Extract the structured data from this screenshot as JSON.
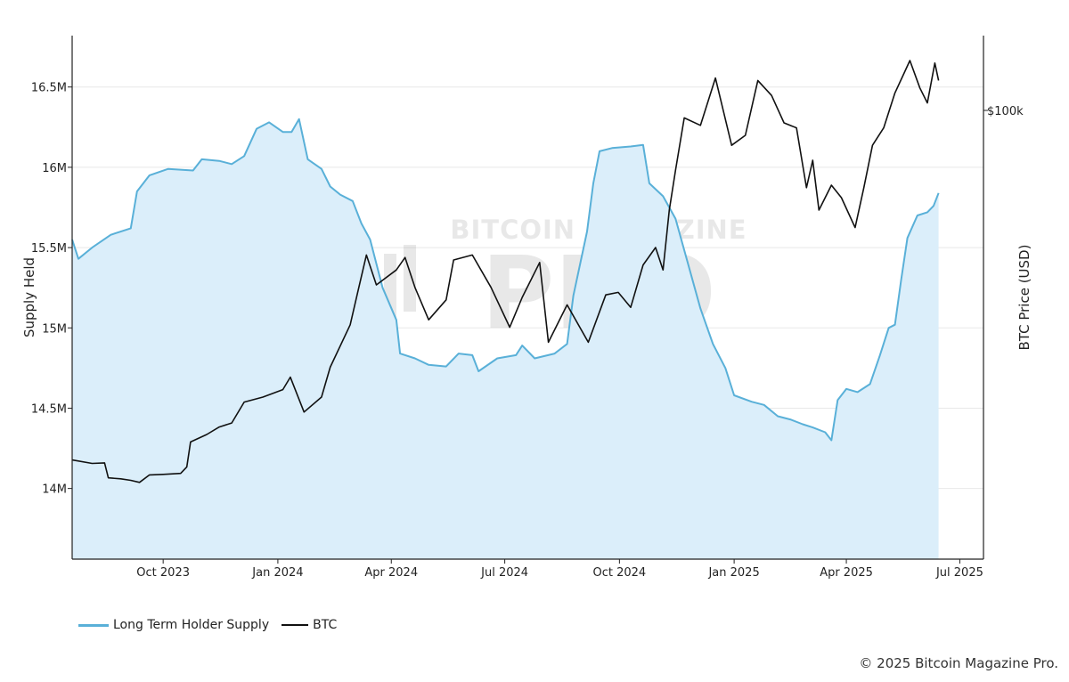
{
  "footer": {
    "copyright": "© 2025 Bitcoin Magazine Pro."
  },
  "watermark": {
    "text": "BITCOIN MAGAZINE",
    "sub": "PRO"
  },
  "colors": {
    "lth_line": "#59b0d8",
    "lth_fill": "#dbeefa",
    "btc_line": "#111111",
    "grid": "#e8e8e8",
    "axis": "#222222"
  },
  "chart_data": {
    "type": "area",
    "title": "",
    "xlabel": "",
    "ylabel": "Supply Held",
    "y2label": "BTC Price (USD)",
    "grid": true,
    "legend_position": "bottom-left",
    "x_tick_labels": [
      "Oct 2023",
      "Jan 2024",
      "Apr 2024",
      "Jul 2024",
      "Oct 2024",
      "Jan 2025",
      "Apr 2025",
      "Jul 2025"
    ],
    "x_ticks": [
      "2023-10-01",
      "2024-01-01",
      "2024-04-01",
      "2024-07-01",
      "2024-10-01",
      "2025-01-01",
      "2025-04-01",
      "2025-07-01"
    ],
    "xlim": [
      "2023-07-20",
      "2025-07-20"
    ],
    "y_tick_labels": [
      "14M",
      "14.5M",
      "15M",
      "15.5M",
      "16M",
      "16.5M"
    ],
    "y_ticks": [
      14000000,
      14500000,
      15000000,
      15500000,
      16000000,
      16500000
    ],
    "ylim": [
      13560000,
      16820000
    ],
    "y2_tick_labels": [
      "$100k"
    ],
    "y2_ticks": [
      100000
    ],
    "y2lim": [
      10000,
      115000
    ],
    "series": [
      {
        "name": "Long Term Holder Supply",
        "axis": "left",
        "points": [
          [
            "2023-07-20",
            15550000
          ],
          [
            "2023-07-25",
            15430000
          ],
          [
            "2023-08-05",
            15500000
          ],
          [
            "2023-08-20",
            15580000
          ],
          [
            "2023-09-05",
            15620000
          ],
          [
            "2023-09-10",
            15850000
          ],
          [
            "2023-09-20",
            15950000
          ],
          [
            "2023-10-05",
            15990000
          ],
          [
            "2023-10-25",
            15980000
          ],
          [
            "2023-11-01",
            16050000
          ],
          [
            "2023-11-15",
            16040000
          ],
          [
            "2023-11-25",
            16020000
          ],
          [
            "2023-12-05",
            16070000
          ],
          [
            "2023-12-15",
            16240000
          ],
          [
            "2023-12-25",
            16280000
          ],
          [
            "2024-01-05",
            16220000
          ],
          [
            "2024-01-12",
            16220000
          ],
          [
            "2024-01-18",
            16300000
          ],
          [
            "2024-01-25",
            16050000
          ],
          [
            "2024-02-05",
            15990000
          ],
          [
            "2024-02-12",
            15880000
          ],
          [
            "2024-02-20",
            15830000
          ],
          [
            "2024-03-01",
            15790000
          ],
          [
            "2024-03-08",
            15650000
          ],
          [
            "2024-03-15",
            15550000
          ],
          [
            "2024-03-25",
            15250000
          ],
          [
            "2024-04-05",
            15050000
          ],
          [
            "2024-04-08",
            14840000
          ],
          [
            "2024-04-20",
            14810000
          ],
          [
            "2024-05-01",
            14770000
          ],
          [
            "2024-05-15",
            14760000
          ],
          [
            "2024-05-25",
            14840000
          ],
          [
            "2024-06-05",
            14830000
          ],
          [
            "2024-06-10",
            14730000
          ],
          [
            "2024-06-25",
            14810000
          ],
          [
            "2024-07-10",
            14830000
          ],
          [
            "2024-07-15",
            14890000
          ],
          [
            "2024-07-25",
            14810000
          ],
          [
            "2024-08-10",
            14840000
          ],
          [
            "2024-08-20",
            14900000
          ],
          [
            "2024-08-25",
            15200000
          ],
          [
            "2024-09-05",
            15600000
          ],
          [
            "2024-09-10",
            15900000
          ],
          [
            "2024-09-15",
            16100000
          ],
          [
            "2024-09-25",
            16120000
          ],
          [
            "2024-10-10",
            16130000
          ],
          [
            "2024-10-20",
            16140000
          ],
          [
            "2024-10-25",
            15900000
          ],
          [
            "2024-11-05",
            15820000
          ],
          [
            "2024-11-15",
            15680000
          ],
          [
            "2024-11-25",
            15400000
          ],
          [
            "2024-12-05",
            15120000
          ],
          [
            "2024-12-15",
            14900000
          ],
          [
            "2024-12-25",
            14750000
          ],
          [
            "2025-01-01",
            14580000
          ],
          [
            "2025-01-15",
            14540000
          ],
          [
            "2025-01-25",
            14520000
          ],
          [
            "2025-02-05",
            14450000
          ],
          [
            "2025-02-15",
            14430000
          ],
          [
            "2025-02-25",
            14400000
          ],
          [
            "2025-03-05",
            14380000
          ],
          [
            "2025-03-15",
            14350000
          ],
          [
            "2025-03-20",
            14300000
          ],
          [
            "2025-03-25",
            14550000
          ],
          [
            "2025-04-01",
            14620000
          ],
          [
            "2025-04-10",
            14600000
          ],
          [
            "2025-04-20",
            14650000
          ],
          [
            "2025-04-28",
            14830000
          ],
          [
            "2025-05-05",
            15000000
          ],
          [
            "2025-05-10",
            15020000
          ],
          [
            "2025-05-15",
            15300000
          ],
          [
            "2025-05-20",
            15560000
          ],
          [
            "2025-05-28",
            15700000
          ],
          [
            "2025-06-05",
            15720000
          ],
          [
            "2025-06-10",
            15760000
          ],
          [
            "2025-06-14",
            15840000
          ]
        ]
      },
      {
        "name": "BTC",
        "axis": "right",
        "points": [
          [
            "2023-07-20",
            29900
          ],
          [
            "2023-08-05",
            29200
          ],
          [
            "2023-08-15",
            29300
          ],
          [
            "2023-08-18",
            26300
          ],
          [
            "2023-08-28",
            26100
          ],
          [
            "2023-09-05",
            25800
          ],
          [
            "2023-09-12",
            25400
          ],
          [
            "2023-09-20",
            26900
          ],
          [
            "2023-10-01",
            27000
          ],
          [
            "2023-10-15",
            27200
          ],
          [
            "2023-10-20",
            28500
          ],
          [
            "2023-10-23",
            33500
          ],
          [
            "2023-11-05",
            35000
          ],
          [
            "2023-11-15",
            36500
          ],
          [
            "2023-11-25",
            37300
          ],
          [
            "2023-12-05",
            41500
          ],
          [
            "2023-12-20",
            42500
          ],
          [
            "2024-01-05",
            44000
          ],
          [
            "2024-01-11",
            46500
          ],
          [
            "2024-01-22",
            39500
          ],
          [
            "2024-02-05",
            42500
          ],
          [
            "2024-02-12",
            48500
          ],
          [
            "2024-02-28",
            57000
          ],
          [
            "2024-03-05",
            63500
          ],
          [
            "2024-03-12",
            71000
          ],
          [
            "2024-03-20",
            65000
          ],
          [
            "2024-04-05",
            68000
          ],
          [
            "2024-04-12",
            70500
          ],
          [
            "2024-04-20",
            64500
          ],
          [
            "2024-05-01",
            58000
          ],
          [
            "2024-05-15",
            62000
          ],
          [
            "2024-05-21",
            70000
          ],
          [
            "2024-06-05",
            71000
          ],
          [
            "2024-06-20",
            64500
          ],
          [
            "2024-07-05",
            56500
          ],
          [
            "2024-07-15",
            62500
          ],
          [
            "2024-07-29",
            69500
          ],
          [
            "2024-08-05",
            53500
          ],
          [
            "2024-08-20",
            61000
          ],
          [
            "2024-09-06",
            53500
          ],
          [
            "2024-09-20",
            63000
          ],
          [
            "2024-09-30",
            63500
          ],
          [
            "2024-10-10",
            60500
          ],
          [
            "2024-10-20",
            69000
          ],
          [
            "2024-10-30",
            72500
          ],
          [
            "2024-11-05",
            68000
          ],
          [
            "2024-11-10",
            80000
          ],
          [
            "2024-11-15",
            88000
          ],
          [
            "2024-11-22",
            98500
          ],
          [
            "2024-12-05",
            97000
          ],
          [
            "2024-12-17",
            106500
          ],
          [
            "2024-12-30",
            93000
          ],
          [
            "2025-01-10",
            95000
          ],
          [
            "2025-01-20",
            106000
          ],
          [
            "2025-01-31",
            103000
          ],
          [
            "2025-02-10",
            97500
          ],
          [
            "2025-02-20",
            96500
          ],
          [
            "2025-02-28",
            84500
          ],
          [
            "2025-03-05",
            90000
          ],
          [
            "2025-03-10",
            80000
          ],
          [
            "2025-03-20",
            85000
          ],
          [
            "2025-03-28",
            82500
          ],
          [
            "2025-04-08",
            76500
          ],
          [
            "2025-04-15",
            84500
          ],
          [
            "2025-04-22",
            93000
          ],
          [
            "2025-05-01",
            96500
          ],
          [
            "2025-05-10",
            103500
          ],
          [
            "2025-05-22",
            110000
          ],
          [
            "2025-05-30",
            104500
          ],
          [
            "2025-06-05",
            101500
          ],
          [
            "2025-06-11",
            109500
          ],
          [
            "2025-06-14",
            106000
          ]
        ]
      }
    ]
  }
}
